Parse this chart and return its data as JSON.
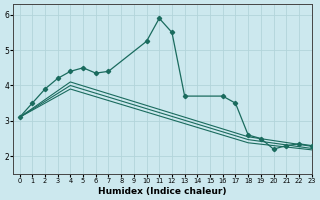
{
  "xlabel": "Humidex (Indice chaleur)",
  "xlim": [
    -0.5,
    23
  ],
  "ylim": [
    1.5,
    6.3
  ],
  "yticks": [
    2,
    3,
    4,
    5,
    6
  ],
  "xticks": [
    0,
    1,
    2,
    3,
    4,
    5,
    6,
    7,
    8,
    9,
    10,
    11,
    12,
    13,
    14,
    15,
    16,
    17,
    18,
    19,
    20,
    21,
    22,
    23
  ],
  "bg_color": "#cce8ee",
  "grid_color": "#b2d4da",
  "line_color": "#1a6b5e",
  "curve_main": {
    "x": [
      0,
      1,
      2,
      3,
      4,
      5,
      6,
      7,
      10,
      11,
      12,
      13,
      16,
      17,
      18,
      19,
      20,
      21,
      22,
      23
    ],
    "y": [
      3.1,
      3.5,
      3.9,
      4.2,
      4.4,
      4.5,
      4.35,
      4.4,
      5.25,
      5.9,
      5.5,
      3.7,
      3.7,
      3.5,
      2.6,
      2.5,
      2.2,
      2.3,
      2.35,
      2.3
    ]
  },
  "curve_lines": [
    {
      "x": [
        0,
        4,
        18,
        23
      ],
      "y": [
        3.1,
        4.1,
        2.55,
        2.28
      ]
    },
    {
      "x": [
        0,
        4,
        18,
        23
      ],
      "y": [
        3.1,
        4.0,
        2.47,
        2.22
      ]
    },
    {
      "x": [
        0,
        4,
        18,
        23
      ],
      "y": [
        3.1,
        3.9,
        2.38,
        2.18
      ]
    }
  ]
}
